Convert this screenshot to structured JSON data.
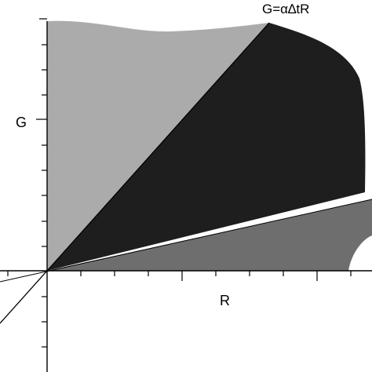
{
  "labels": {
    "x_axis": "R",
    "y_axis": "G",
    "line": "G=α∆tR"
  },
  "colors": {
    "background": "#ffffff",
    "light_region": "#ababab",
    "dark_region": "#1e1e1e",
    "lower_region": "#6e6e6e",
    "axis": "#000000"
  }
}
